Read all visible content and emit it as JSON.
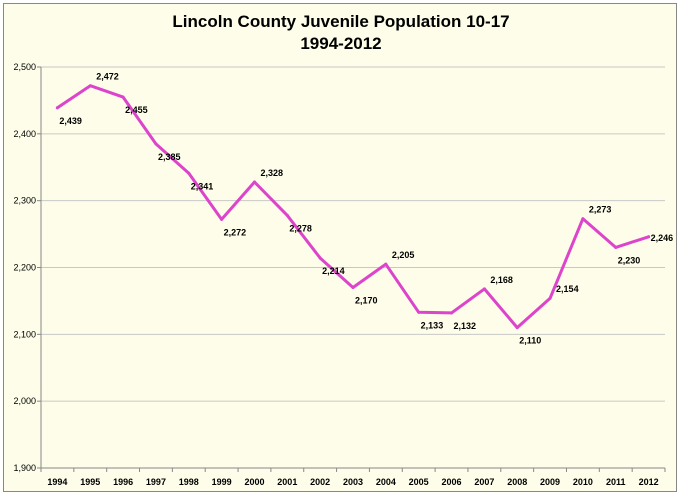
{
  "chart_data": {
    "type": "line",
    "title": "Lincoln County Juvenile Population 10-17",
    "subtitle": "1994-2012",
    "xlabel": "",
    "ylabel": "",
    "categories": [
      "1994",
      "1995",
      "1996",
      "1997",
      "1998",
      "1999",
      "2000",
      "2001",
      "2002",
      "2003",
      "2004",
      "2005",
      "2006",
      "2007",
      "2008",
      "2009",
      "2010",
      "2011",
      "2012"
    ],
    "series": [
      {
        "values": [
          2439,
          2472,
          2455,
          2385,
          2341,
          2272,
          2328,
          2278,
          2214,
          2170,
          2205,
          2133,
          2132,
          2168,
          2110,
          2154,
          2273,
          2230,
          2246
        ]
      }
    ],
    "data_labels": [
      "2,439",
      "2,472",
      "2,455",
      "2,385",
      "2,341",
      "2,272",
      "2,328",
      "2,278",
      "2,214",
      "2,170",
      "2,205",
      "2,133",
      "2,132",
      "2,168",
      "2,110",
      "2,154",
      "2,273",
      "2,230",
      "2,246"
    ],
    "ylim": [
      1900,
      2500
    ],
    "y_ticks": [
      1900,
      2000,
      2100,
      2200,
      2300,
      2400,
      2500
    ],
    "y_tick_labels": [
      "1,900",
      "2,000",
      "2,100",
      "2,200",
      "2,300",
      "2,400",
      "2,500"
    ],
    "grid": true,
    "legend": "none",
    "colors": {
      "line": "#dd44cc",
      "background": "#fdfde9",
      "grid": "#c8c8c8"
    }
  }
}
